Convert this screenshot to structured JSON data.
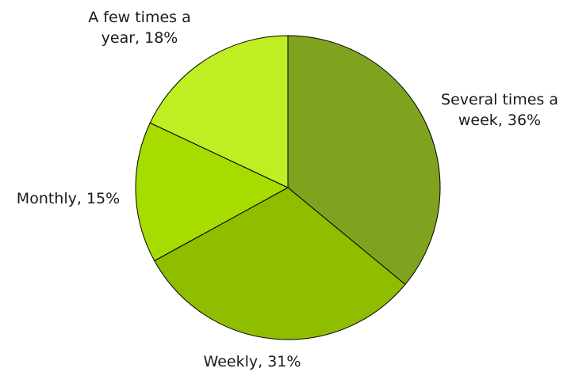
{
  "chart_data": {
    "type": "pie",
    "title": "",
    "slices": [
      {
        "label": "Several times a week, 36%",
        "label_lines": [
          "Several times a",
          "week, 36%"
        ],
        "value": 36,
        "color": "#80a31f"
      },
      {
        "label": "Weekly, 31%",
        "label_lines": [
          "Weekly, 31%"
        ],
        "value": 31,
        "color": "#8fbd00"
      },
      {
        "label": "Monthly, 15%",
        "label_lines": [
          "Monthly, 15%"
        ],
        "value": 15,
        "color": "#a6dc00"
      },
      {
        "label": "A few times a year, 18%",
        "label_lines": [
          "A few times a",
          "year, 18%"
        ],
        "value": 18,
        "color": "#bfee22"
      }
    ],
    "start_direction": "top",
    "rotation": "clockwise"
  }
}
